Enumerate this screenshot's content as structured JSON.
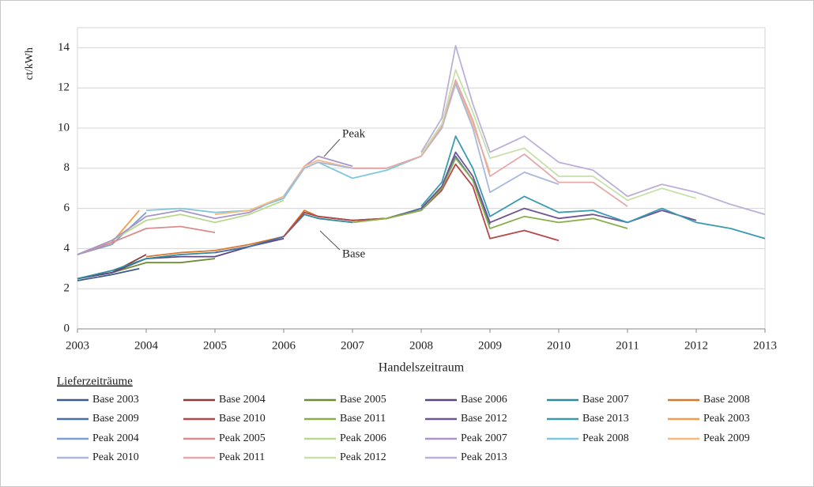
{
  "chart_data": {
    "type": "line",
    "y_label": "ct/kWh",
    "x_label": "Handelszeitraum",
    "legend_title": "Lieferzeiträume",
    "annotations": [
      "Peak",
      "Base"
    ],
    "xlim": [
      2003,
      2013
    ],
    "xticks": [
      2003,
      2004,
      2005,
      2006,
      2007,
      2008,
      2009,
      2010,
      2011,
      2012,
      2013
    ],
    "ylim": [
      0,
      15
    ],
    "yticks": [
      0,
      2,
      4,
      6,
      8,
      10,
      12,
      14
    ],
    "grid": true,
    "series": [
      {
        "name": "Base 2003",
        "color": "#3b5b8c",
        "x": [
          2003,
          2003.5,
          2003.9
        ],
        "values": [
          2.4,
          2.7,
          3.0
        ]
      },
      {
        "name": "Base 2004",
        "color": "#8c3b3a",
        "x": [
          2003,
          2003.5,
          2004
        ],
        "values": [
          2.5,
          2.8,
          3.7
        ]
      },
      {
        "name": "Base 2005",
        "color": "#6f8b3a",
        "x": [
          2003,
          2003.5,
          2004,
          2004.5,
          2005
        ],
        "values": [
          2.5,
          2.8,
          3.3,
          3.3,
          3.5
        ]
      },
      {
        "name": "Base 2006",
        "color": "#5b4680",
        "x": [
          2003,
          2003.5,
          2004,
          2004.5,
          2005,
          2005.5,
          2006
        ],
        "values": [
          2.5,
          2.8,
          3.5,
          3.6,
          3.6,
          4.1,
          4.5
        ]
      },
      {
        "name": "Base 2007",
        "color": "#2f8a9c",
        "x": [
          2003,
          2003.5,
          2004,
          2004.5,
          2005,
          2005.5,
          2006,
          2006.3,
          2006.5,
          2007
        ],
        "values": [
          2.5,
          2.9,
          3.5,
          3.7,
          3.8,
          4.1,
          4.6,
          5.7,
          5.5,
          5.3
        ]
      },
      {
        "name": "Base 2008",
        "color": "#d9772a",
        "x": [
          2004,
          2004.5,
          2005,
          2005.5,
          2006,
          2006.3,
          2006.5,
          2007,
          2007.5,
          2008
        ],
        "values": [
          3.6,
          3.8,
          3.9,
          4.2,
          4.6,
          5.9,
          5.6,
          5.4,
          5.5,
          6.0
        ]
      },
      {
        "name": "Base 2009",
        "color": "#4a6fa5",
        "x": [
          2005,
          2005.5,
          2006,
          2006.3,
          2006.5,
          2007,
          2007.5,
          2008,
          2008.3,
          2008.5,
          2008.75,
          2009
        ],
        "values": [
          3.8,
          4.1,
          4.6,
          5.8,
          5.6,
          5.4,
          5.5,
          6.0,
          7.0,
          8.6,
          7.4,
          5.2
        ]
      },
      {
        "name": "Base 2010",
        "color": "#b8474a",
        "x": [
          2006,
          2006.3,
          2006.5,
          2007,
          2007.5,
          2008,
          2008.3,
          2008.5,
          2008.75,
          2009,
          2009.5,
          2010
        ],
        "values": [
          4.6,
          5.8,
          5.6,
          5.4,
          5.5,
          5.9,
          6.9,
          8.2,
          7.1,
          4.5,
          4.9,
          4.4
        ]
      },
      {
        "name": "Base 2011",
        "color": "#8aae4a",
        "x": [
          2007,
          2007.5,
          2008,
          2008.3,
          2008.5,
          2008.75,
          2009,
          2009.5,
          2010,
          2010.5,
          2011
        ],
        "values": [
          5.3,
          5.5,
          5.9,
          7.0,
          8.5,
          7.4,
          5.0,
          5.6,
          5.3,
          5.5,
          5.0
        ]
      },
      {
        "name": "Base 2012",
        "color": "#6e5496",
        "x": [
          2008,
          2008.3,
          2008.5,
          2008.75,
          2009,
          2009.5,
          2010,
          2010.5,
          2011,
          2011.5,
          2012
        ],
        "values": [
          6.0,
          7.1,
          8.8,
          7.6,
          5.3,
          6.0,
          5.5,
          5.7,
          5.3,
          5.9,
          5.4
        ]
      },
      {
        "name": "Base 2013",
        "color": "#3a9ab0",
        "x": [
          2008,
          2008.3,
          2008.5,
          2008.75,
          2009,
          2009.5,
          2010,
          2010.5,
          2011,
          2011.5,
          2012,
          2012.5,
          2013
        ],
        "values": [
          6.1,
          7.3,
          9.6,
          8.0,
          5.6,
          6.6,
          5.8,
          5.9,
          5.3,
          6.0,
          5.3,
          5.0,
          4.5
        ]
      },
      {
        "name": "Peak 2003",
        "color": "#f39c4a",
        "x": [
          2003,
          2003.5,
          2003.9
        ],
        "values": [
          3.7,
          4.3,
          5.9
        ]
      },
      {
        "name": "Peak 2004",
        "color": "#7f9fd4",
        "x": [
          2003,
          2003.5,
          2004
        ],
        "values": [
          3.7,
          4.2,
          5.8
        ]
      },
      {
        "name": "Peak 2005",
        "color": "#d98c8c",
        "x": [
          2003,
          2003.5,
          2004,
          2004.5,
          2005
        ],
        "values": [
          3.7,
          4.3,
          5.0,
          5.1,
          4.8
        ]
      },
      {
        "name": "Peak 2006",
        "color": "#b8d98c",
        "x": [
          2003,
          2003.5,
          2004,
          2004.5,
          2005,
          2005.5,
          2006
        ],
        "values": [
          3.7,
          4.4,
          5.4,
          5.7,
          5.3,
          5.7,
          6.4
        ]
      },
      {
        "name": "Peak 2007",
        "color": "#a896c8",
        "x": [
          2003,
          2003.5,
          2004,
          2004.5,
          2005,
          2005.5,
          2006,
          2006.3,
          2006.5,
          2007
        ],
        "values": [
          3.7,
          4.4,
          5.6,
          5.9,
          5.5,
          5.8,
          6.6,
          8.1,
          8.6,
          8.1
        ]
      },
      {
        "name": "Peak 2008",
        "color": "#7fc8dc",
        "x": [
          2004,
          2004.5,
          2005,
          2005.5,
          2006,
          2006.3,
          2006.5,
          2007,
          2007.5,
          2008
        ],
        "values": [
          5.9,
          6.0,
          5.8,
          5.9,
          6.5,
          8.0,
          8.3,
          7.5,
          7.9,
          8.6
        ]
      },
      {
        "name": "Peak 2009",
        "color": "#f8b880",
        "x": [
          2005,
          2005.5,
          2006,
          2006.3,
          2006.5,
          2007,
          2007.5,
          2008,
          2008.3,
          2008.5,
          2008.75,
          2009
        ],
        "values": [
          5.7,
          5.9,
          6.6,
          8.1,
          8.4,
          8.0,
          8.0,
          8.6,
          10.0,
          12.3,
          10.2,
          7.8
        ]
      },
      {
        "name": "Peak 2010",
        "color": "#aab8dc",
        "x": [
          2006,
          2006.3,
          2006.5,
          2007,
          2007.5,
          2008,
          2008.3,
          2008.5,
          2008.75,
          2009,
          2009.5,
          2010
        ],
        "values": [
          6.6,
          8.0,
          8.3,
          8.0,
          8.0,
          8.6,
          10.0,
          12.2,
          10.0,
          6.8,
          7.8,
          7.2
        ]
      },
      {
        "name": "Peak 2011",
        "color": "#e4aaaa",
        "x": [
          2007,
          2007.5,
          2008,
          2008.3,
          2008.5,
          2008.75,
          2009,
          2009.5,
          2010,
          2010.5,
          2011
        ],
        "values": [
          8.0,
          8.0,
          8.6,
          10.1,
          12.4,
          10.4,
          7.6,
          8.7,
          7.3,
          7.3,
          6.1
        ]
      },
      {
        "name": "Peak 2012",
        "color": "#c8e0aa",
        "x": [
          2008,
          2008.3,
          2008.5,
          2008.75,
          2009,
          2009.5,
          2010,
          2010.5,
          2011,
          2011.5,
          2012
        ],
        "values": [
          8.7,
          10.2,
          12.9,
          10.8,
          8.5,
          9.0,
          7.6,
          7.6,
          6.4,
          7.0,
          6.5
        ]
      },
      {
        "name": "Peak 2013",
        "color": "#bcb0d8",
        "x": [
          2008,
          2008.3,
          2008.5,
          2008.75,
          2009,
          2009.5,
          2010,
          2010.5,
          2011,
          2011.5,
          2012,
          2012.5,
          2013
        ],
        "values": [
          8.8,
          10.5,
          14.1,
          11.2,
          8.8,
          9.6,
          8.3,
          7.9,
          6.6,
          7.2,
          6.8,
          6.2,
          5.7
        ]
      }
    ]
  }
}
